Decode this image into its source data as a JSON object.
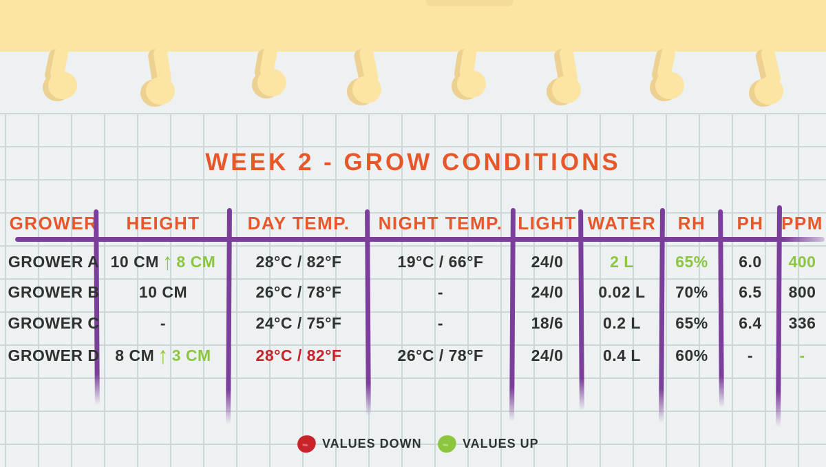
{
  "title": "WEEK 2 - GROW CONDITIONS",
  "colors": {
    "paper-bg": "#eef1f1",
    "grid-line": "#cbd7db",
    "yellow": "#fce5a2",
    "yellow-shadow": "#edd192",
    "orange": "#e7572a",
    "purple": "#7b3e9a",
    "green": "#8cc63f",
    "red": "#c8222a",
    "ink": "#2e3231"
  },
  "table": {
    "columns": [
      {
        "key": "grower",
        "label": "GROWER"
      },
      {
        "key": "height",
        "label": "HEIGHT"
      },
      {
        "key": "day-temp",
        "label": "DAY TEMP."
      },
      {
        "key": "night-temp",
        "label": "NIGHT TEMP."
      },
      {
        "key": "light",
        "label": "LIGHT"
      },
      {
        "key": "water",
        "label": "WATER"
      },
      {
        "key": "rh",
        "label": "RH"
      },
      {
        "key": "ph",
        "label": "PH"
      },
      {
        "key": "ppm",
        "label": "PPM"
      }
    ],
    "rows": [
      {
        "cells": [
          {
            "text": "GROWER A"
          },
          {
            "parts": [
              {
                "text": "10 CM"
              },
              {
                "icon": "arrow-up"
              },
              {
                "text": "8 CM",
                "color": "green"
              }
            ]
          },
          {
            "text": "28°C / 82°F"
          },
          {
            "text": "19°C / 66°F"
          },
          {
            "text": "24/0"
          },
          {
            "text": "2 L",
            "color": "green"
          },
          {
            "text": "65%",
            "color": "green"
          },
          {
            "text": "6.0"
          },
          {
            "text": "400",
            "color": "green"
          }
        ]
      },
      {
        "cells": [
          {
            "text": "GROWER B"
          },
          {
            "text": "10 CM"
          },
          {
            "text": "26°C / 78°F"
          },
          {
            "text": "-"
          },
          {
            "text": "24/0"
          },
          {
            "text": "0.02 L"
          },
          {
            "text": "70%"
          },
          {
            "text": "6.5"
          },
          {
            "text": "800"
          }
        ]
      },
      {
        "cells": [
          {
            "text": "GROWER C"
          },
          {
            "text": "-"
          },
          {
            "text": "24°C / 75°F"
          },
          {
            "text": "-"
          },
          {
            "text": "18/6"
          },
          {
            "text": "0.2 L"
          },
          {
            "text": "65%"
          },
          {
            "text": "6.4"
          },
          {
            "text": "336"
          }
        ]
      },
      {
        "cells": [
          {
            "text": "GROWER D"
          },
          {
            "parts": [
              {
                "text": "8 CM"
              },
              {
                "icon": "arrow-up"
              },
              {
                "text": "3 CM",
                "color": "green"
              }
            ]
          },
          {
            "text": "28°C / 82°F",
            "color": "red"
          },
          {
            "text": "26°C / 78°F"
          },
          {
            "text": "24/0"
          },
          {
            "text": "0.4 L"
          },
          {
            "text": "60%"
          },
          {
            "text": "-"
          },
          {
            "text": "-",
            "color": "green"
          }
        ]
      }
    ]
  },
  "legend": [
    {
      "label": "VALUES DOWN",
      "color": "#c8222a"
    },
    {
      "label": "VALUES UP",
      "color": "#8cc63f"
    }
  ],
  "chart_data": {
    "type": "table",
    "title": "WEEK 2 - GROW CONDITIONS",
    "columns": [
      "GROWER",
      "HEIGHT",
      "DAY TEMP.",
      "NIGHT TEMP.",
      "LIGHT",
      "WATER",
      "RH",
      "PH",
      "PPM"
    ],
    "rows": [
      [
        "GROWER A",
        "10 CM ↑ 8 CM",
        "28°C / 82°F",
        "19°C / 66°F",
        "24/0",
        "2 L",
        "65%",
        "6.0",
        "400"
      ],
      [
        "GROWER B",
        "10 CM",
        "26°C / 78°F",
        "-",
        "24/0",
        "0.02 L",
        "70%",
        "6.5",
        "800"
      ],
      [
        "GROWER C",
        "-",
        "24°C / 75°F",
        "-",
        "18/6",
        "0.2 L",
        "65%",
        "6.4",
        "336"
      ],
      [
        "GROWER D",
        "8 CM ↑ 3 CM",
        "28°C / 82°F",
        "26°C / 78°F",
        "24/0",
        "0.4 L",
        "60%",
        "-",
        "-"
      ]
    ],
    "legend": [
      "VALUES DOWN",
      "VALUES UP"
    ],
    "notes": "Green values indicate values up; red values indicate values down."
  }
}
